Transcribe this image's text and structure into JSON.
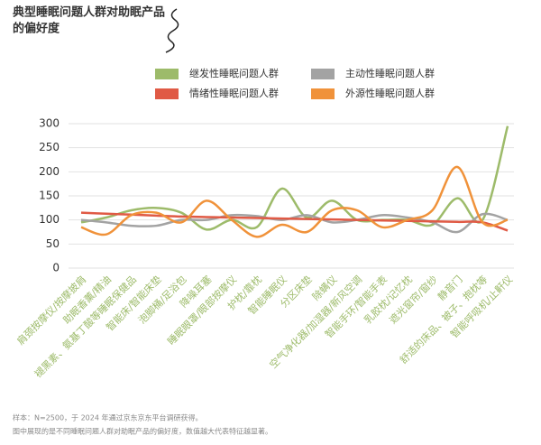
{
  "chart_data": {
    "type": "line",
    "title": [
      "典型睡眠问题人群对助眠产品",
      "的偏好度"
    ],
    "categories": [
      "肩颈按摩仪/按摩披肩",
      "助眠香薰/精油",
      "褪黑素、氨基丁酸等睡眠保健品",
      "智能床/智能床垫",
      "泡脚桶/足浴包",
      "降噪耳塞",
      "睡眠眼罩/眼部按摩仪",
      "护枕/靠枕",
      "智能睡眠仪",
      "分区床垫",
      "除螨仪",
      "空气净化器/加湿器/新风空调",
      "智能手环/智能手表",
      "乳胶枕/记忆枕",
      "遮光窗帘/窗纱",
      "静音门",
      "舒适的床品、被子、抱枕等",
      "智能呼吸机/止鼾仪"
    ],
    "series": [
      {
        "name": "继发性睡眠问题人群",
        "color": "#9dbb6a",
        "values": [
          95,
          105,
          120,
          125,
          115,
          80,
          100,
          85,
          165,
          105,
          140,
          100,
          100,
          100,
          90,
          145,
          100,
          295
        ]
      },
      {
        "name": "主动性睡眠问题人群",
        "color": "#a3a3a3",
        "values": [
          100,
          95,
          88,
          88,
          100,
          100,
          110,
          108,
          100,
          110,
          95,
          100,
          110,
          105,
          95,
          75,
          112,
          100
        ]
      },
      {
        "name": "情绪性睡眠问题人群",
        "color": "#e05a45",
        "values": [
          115,
          113,
          111,
          109,
          107,
          106,
          105,
          104,
          103,
          102,
          101,
          100,
          99,
          98,
          97,
          96,
          95,
          78
        ]
      },
      {
        "name": "外源性睡眠问题人群",
        "color": "#f0923a",
        "values": [
          85,
          70,
          110,
          115,
          95,
          140,
          100,
          65,
          90,
          75,
          120,
          120,
          85,
          100,
          120,
          210,
          95,
          100
        ]
      }
    ],
    "ylim": [
      0,
      300
    ],
    "yticks": [
      0,
      50,
      100,
      150,
      200,
      250,
      300
    ],
    "notes": [
      "样本：N=2500，于 2024 年通过京东京东平台调研获得。",
      "图中展现的是不同睡眠问题人群对助眠产品的偏好度，数值越大代表特征越显著。"
    ]
  }
}
